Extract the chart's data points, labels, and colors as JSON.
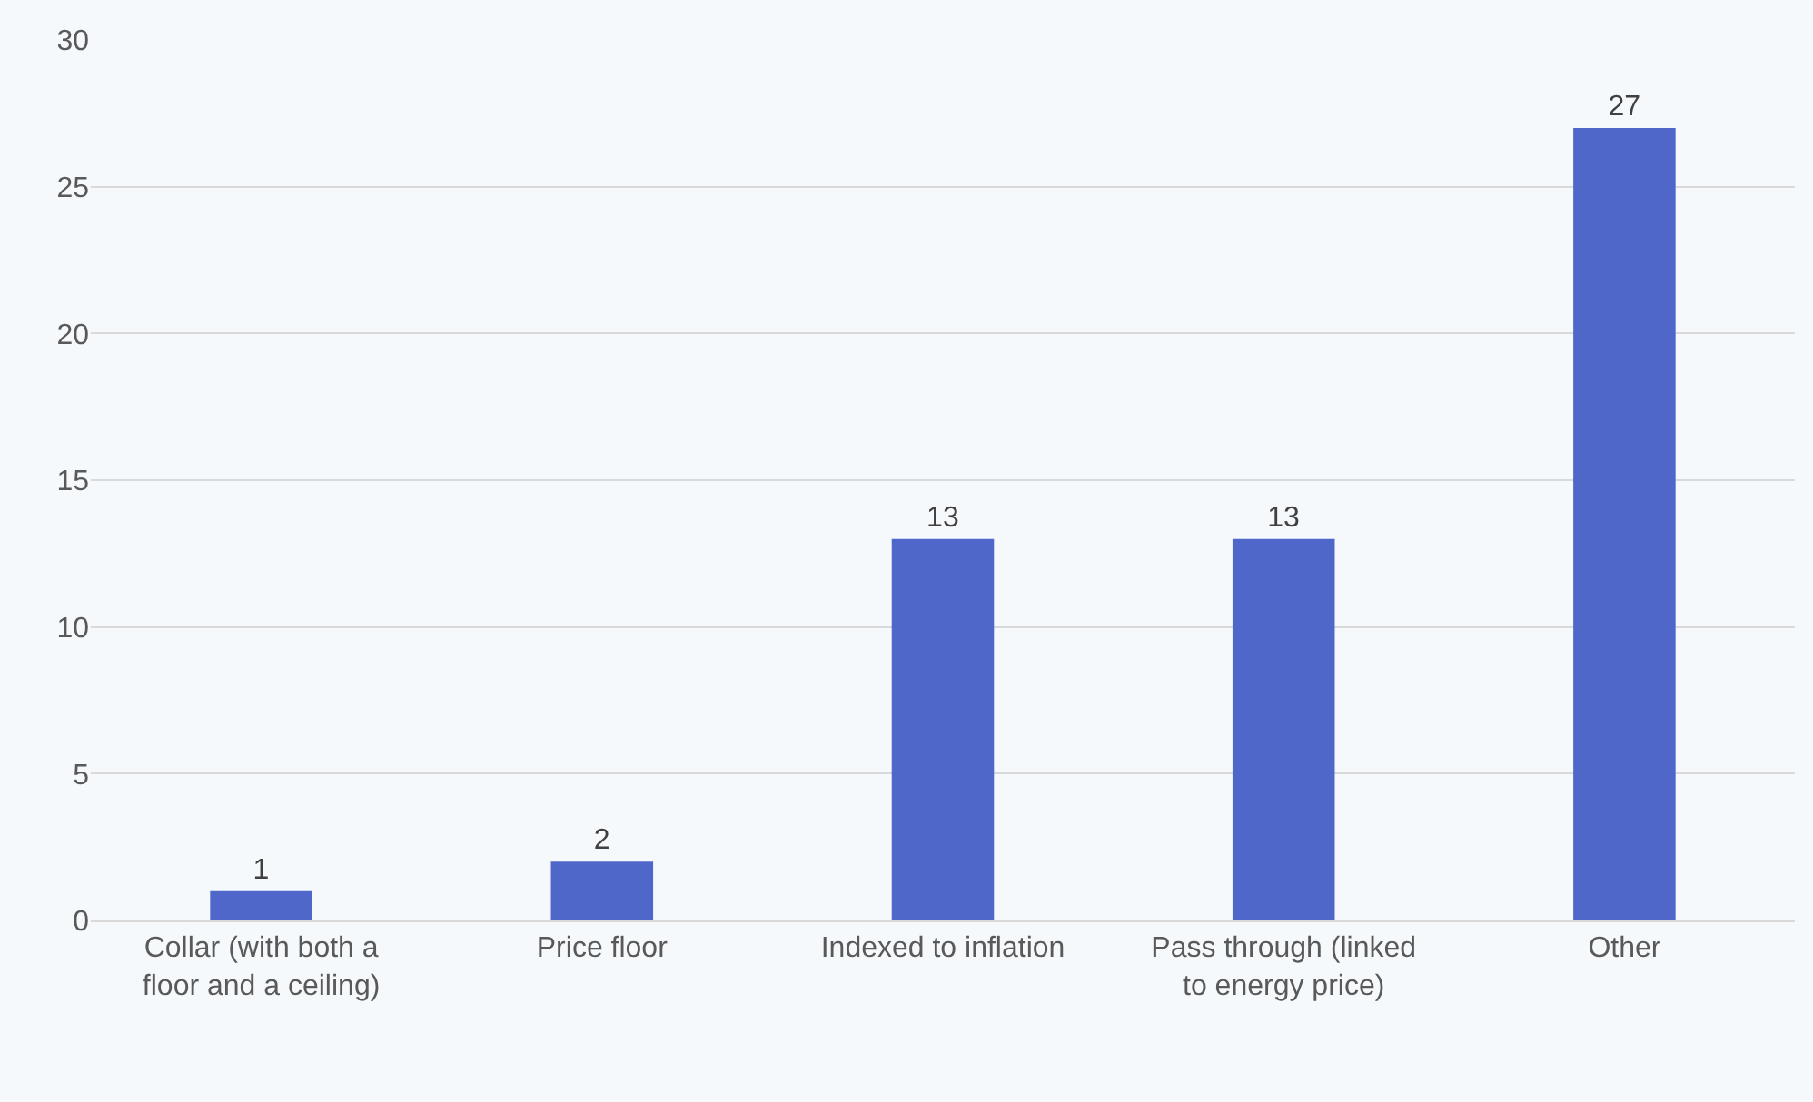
{
  "chart_data": {
    "type": "bar",
    "categories": [
      "Collar (with both a floor and a ceiling)",
      "Price floor",
      "Indexed to inflation",
      "Pass through (linked to energy price)",
      "Other"
    ],
    "values": [
      1,
      2,
      13,
      13,
      27
    ],
    "color": "#4f67c9",
    "ylim": [
      0,
      30
    ],
    "yticks": [
      0,
      5,
      10,
      15,
      20,
      25,
      30
    ],
    "grid": "y",
    "data_labels": true,
    "legend": false
  }
}
